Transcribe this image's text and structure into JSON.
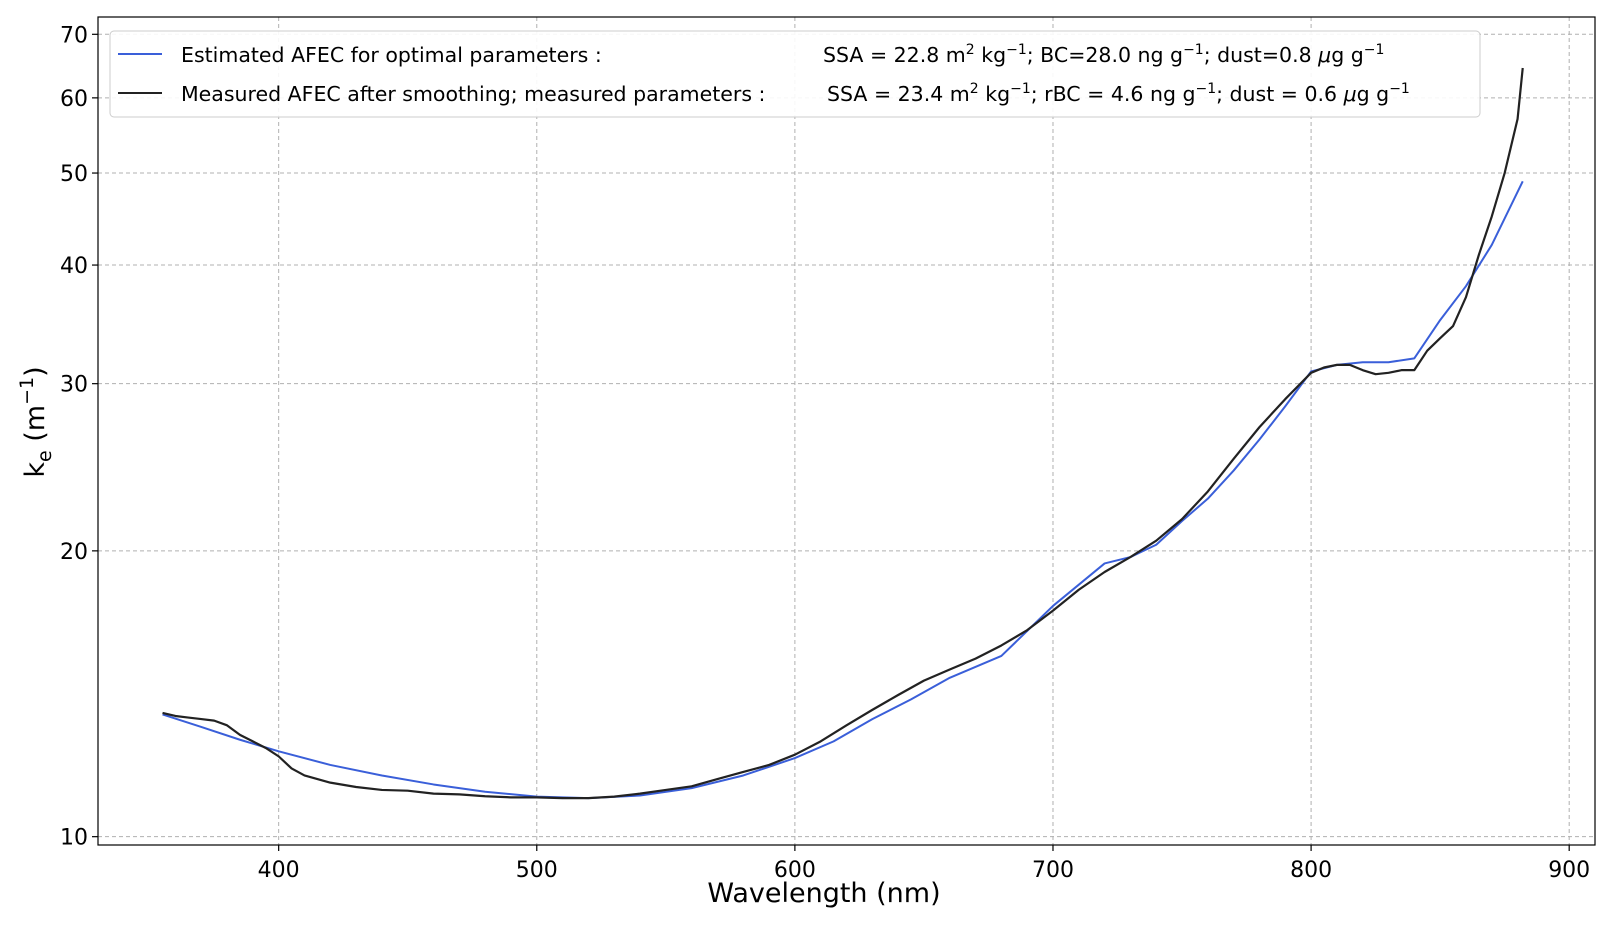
{
  "chart_data": {
    "type": "line",
    "xlabel": "Wavelength (nm)",
    "ylabel": {
      "main": "k",
      "sub": "e",
      "unit_open": " (m",
      "unit_sup": "−1",
      "unit_close": ")"
    },
    "x_scale": "linear",
    "y_scale": "log",
    "xlim": [
      330,
      910
    ],
    "ylim": [
      9.8,
      73
    ],
    "x_ticks": [
      400,
      500,
      600,
      700,
      800,
      900
    ],
    "y_ticks": [
      10,
      20,
      30,
      40,
      50,
      60,
      70
    ],
    "grid": true,
    "legend_position": "top-left",
    "series": [
      {
        "name": "Estimated AFEC for optimal parameters :",
        "label_params": [
          [
            "SSA = 22.8 m",
            ""
          ],
          [
            "2",
            "sup"
          ],
          [
            " kg",
            ""
          ],
          [
            "−1",
            "sup"
          ],
          [
            "; BC=28.0 ng g",
            ""
          ],
          [
            "−1",
            "sup"
          ],
          [
            ";  dust=0.8 ",
            ""
          ],
          [
            "μ",
            "it"
          ],
          [
            "g g",
            ""
          ],
          [
            "−1",
            "sup"
          ]
        ],
        "color": "#3a5fd9",
        "x": [
          355,
          370,
          385,
          400,
          420,
          440,
          460,
          480,
          500,
          520,
          540,
          560,
          580,
          600,
          615,
          630,
          645,
          660,
          680,
          700,
          720,
          730,
          740,
          750,
          760,
          770,
          780,
          790,
          800,
          810,
          820,
          830,
          840,
          850,
          860,
          870,
          882
        ],
        "y": [
          13.45,
          13.05,
          12.65,
          12.3,
          11.9,
          11.6,
          11.35,
          11.15,
          11.02,
          10.98,
          11.05,
          11.25,
          11.6,
          12.1,
          12.6,
          13.3,
          13.95,
          14.7,
          15.5,
          17.5,
          19.4,
          19.7,
          20.3,
          21.5,
          22.7,
          24.3,
          26.2,
          28.4,
          30.9,
          31.4,
          31.6,
          31.6,
          31.9,
          35.0,
          38.0,
          42.0,
          49.0
        ]
      },
      {
        "name": "Measured AFEC after smoothing; measured parameters :",
        "label_params": [
          [
            "SSA = 23.4 m",
            ""
          ],
          [
            "2",
            "sup"
          ],
          [
            " kg",
            ""
          ],
          [
            "−1",
            "sup"
          ],
          [
            "; rBC = 4.6 ng g",
            ""
          ],
          [
            "−1",
            "sup"
          ],
          [
            ";  dust = 0.6 ",
            ""
          ],
          [
            "μ",
            "it"
          ],
          [
            "g g",
            ""
          ],
          [
            "−1",
            "sup"
          ]
        ],
        "color": "#222222",
        "x": [
          355,
          360,
          365,
          370,
          375,
          380,
          385,
          390,
          395,
          400,
          405,
          410,
          420,
          430,
          440,
          450,
          460,
          470,
          480,
          490,
          500,
          510,
          520,
          530,
          540,
          550,
          560,
          570,
          580,
          590,
          600,
          610,
          620,
          630,
          640,
          650,
          660,
          670,
          680,
          690,
          700,
          710,
          720,
          730,
          740,
          750,
          760,
          770,
          780,
          790,
          800,
          805,
          810,
          815,
          820,
          825,
          830,
          835,
          840,
          845,
          850,
          855,
          860,
          865,
          870,
          875,
          880,
          882
        ],
        "y": [
          13.5,
          13.4,
          13.35,
          13.3,
          13.25,
          13.1,
          12.8,
          12.6,
          12.4,
          12.15,
          11.8,
          11.6,
          11.4,
          11.28,
          11.2,
          11.18,
          11.1,
          11.08,
          11.03,
          11.0,
          11.0,
          10.98,
          10.98,
          11.02,
          11.1,
          11.2,
          11.3,
          11.5,
          11.7,
          11.9,
          12.2,
          12.6,
          13.1,
          13.6,
          14.1,
          14.6,
          15.0,
          15.4,
          15.9,
          16.5,
          17.3,
          18.2,
          19.0,
          19.7,
          20.5,
          21.6,
          23.1,
          25.0,
          27.0,
          28.9,
          30.8,
          31.2,
          31.4,
          31.4,
          31.0,
          30.7,
          30.8,
          31.0,
          31.0,
          32.5,
          33.5,
          34.5,
          37.0,
          41.0,
          45.0,
          50.0,
          57.0,
          64.5
        ]
      }
    ]
  }
}
